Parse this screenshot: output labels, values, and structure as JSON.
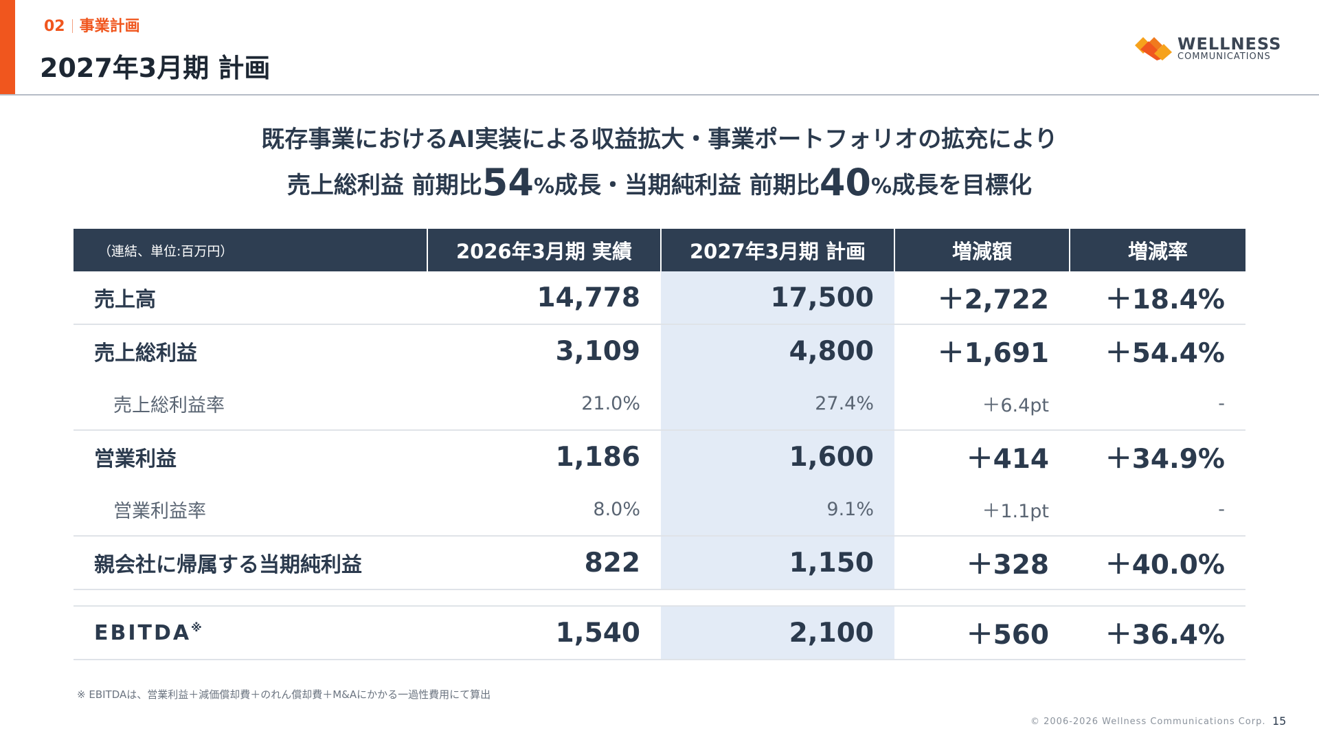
{
  "header": {
    "section_number": "02",
    "section_name": "事業計画",
    "title": "2027年3月期 計画",
    "logo_word1": "WELLNESS",
    "logo_word2": "COMMUNICATIONS",
    "colors": {
      "accent": "#f0561e",
      "navy": "#2e3e52",
      "plan_column": "#e3ebf6"
    }
  },
  "headline": {
    "line1": "既存事業におけるAI実装による収益拡大・事業ポートフォリオの拡充により",
    "line2_a": "売上総利益 前期比",
    "gross_profit_growth": "54",
    "line2_pct": "%",
    "line2_b": "成長・当期純利益 前期比",
    "net_income_growth": "40",
    "line2_pct2": "%",
    "line2_c": "成長を目標化"
  },
  "table": {
    "unit_note": "（連結、単位:百万円）",
    "columns": [
      "2026年3月期 実績",
      "2027年3月期 計画",
      "増減額",
      "増減率"
    ],
    "rows": [
      {
        "label": "売上高",
        "actual": "14,778",
        "plan": "17,500",
        "change": "＋2,722",
        "rate": "＋18.4%"
      },
      {
        "label": "売上総利益",
        "actual": "3,109",
        "plan": "4,800",
        "change": "＋1,691",
        "rate": "＋54.4%"
      },
      {
        "label": "売上総利益率",
        "actual": "21.0%",
        "plan": "27.4%",
        "change": "＋6.4pt",
        "rate": "-"
      },
      {
        "label": "営業利益",
        "actual": "1,186",
        "plan": "1,600",
        "change": "＋414",
        "rate": "＋34.9%"
      },
      {
        "label": "営業利益率",
        "actual": "8.0%",
        "plan": "9.1%",
        "change": "＋1.1pt",
        "rate": "-"
      },
      {
        "label": "親会社に帰属する当期純利益",
        "actual": "822",
        "plan": "1,150",
        "change": "＋328",
        "rate": "＋40.0%"
      },
      {
        "label": "EBITDA",
        "note_mark": "※",
        "actual": "1,540",
        "plan": "2,100",
        "change": "＋560",
        "rate": "＋36.4%"
      }
    ]
  },
  "footnote": "※ EBITDAは、営業利益＋減価償却費＋のれん償却費＋M&Aにかかる一過性費用にて算出",
  "copyright": "© 2006-2026 Wellness Communications Corp.",
  "page_number": "15"
}
